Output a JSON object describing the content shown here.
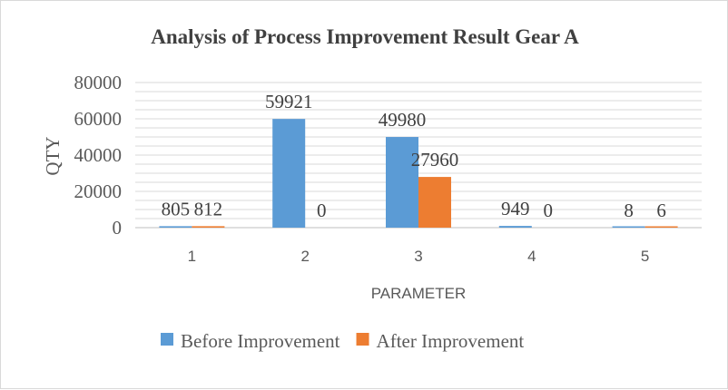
{
  "chart_data": {
    "type": "bar",
    "title": "Analysis of Process Improvement Result Gear A",
    "xlabel": "PARAMETER",
    "ylabel": "QTY",
    "categories": [
      "1",
      "2",
      "3",
      "4",
      "5"
    ],
    "series": [
      {
        "name": "Before Improvement",
        "color": "#5b9bd5",
        "values": [
          805,
          59921,
          49980,
          949,
          8
        ]
      },
      {
        "name": "After Improvement",
        "color": "#ed7d31",
        "values": [
          812,
          0,
          27960,
          0,
          6
        ]
      }
    ],
    "ylim": [
      0,
      80000
    ],
    "yticks": [
      "0",
      "20000",
      "40000",
      "60000",
      "80000"
    ],
    "grid": true,
    "legend_position": "bottom"
  }
}
